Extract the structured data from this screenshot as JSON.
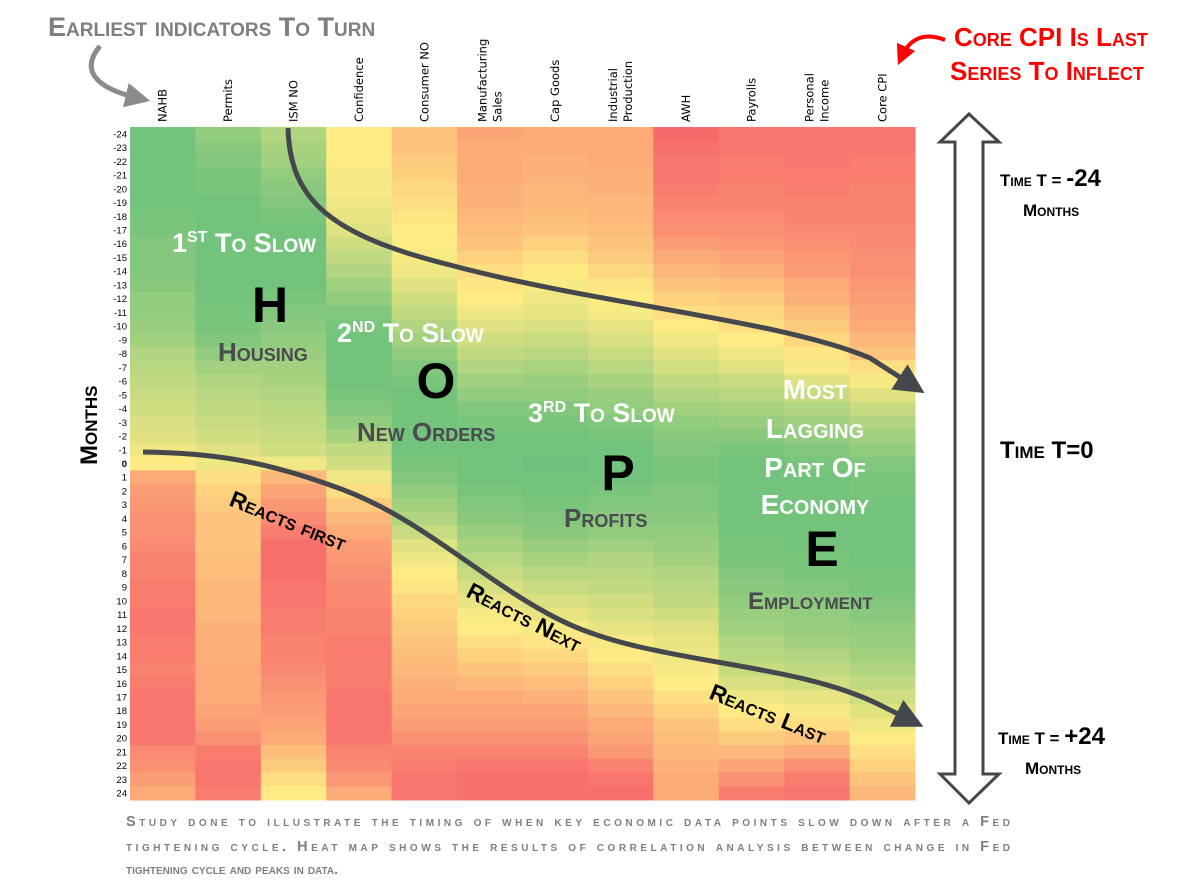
{
  "chart_data": {
    "type": "heatmap",
    "title": "Earliest indicators To Turn",
    "ylabel": "Months",
    "color_scale": {
      "low": "#f8696b",
      "mid": "#ffeb84",
      "high": "#63be7b"
    },
    "value_range": [
      -1,
      1
    ],
    "columns": [
      {
        "label": [
          "NAHB"
        ],
        "values": [
          0.9,
          0.9,
          0.9,
          0.9,
          0.9,
          0.9,
          0.85,
          0.85,
          0.8,
          0.8,
          0.8,
          0.75,
          0.7,
          0.7,
          0.65,
          0.6,
          0.5,
          0.45,
          0.4,
          0.35,
          0.3,
          0.25,
          0.2,
          0.1,
          0,
          -0.5,
          -0.6,
          -0.65,
          -0.7,
          -0.7,
          -0.75,
          -0.8,
          -0.8,
          -0.85,
          -0.85,
          -0.9,
          -0.9,
          -0.85,
          -0.85,
          -0.8,
          -0.85,
          -0.9,
          -0.9,
          -0.9,
          -0.9,
          -0.75,
          -0.7,
          -0.6,
          -0.5
        ]
      },
      {
        "label": [
          "Permits"
        ],
        "values": [
          0.7,
          0.75,
          0.8,
          0.85,
          0.85,
          0.9,
          0.9,
          0.9,
          0.9,
          0.9,
          0.9,
          0.9,
          0.9,
          0.85,
          0.85,
          0.8,
          0.7,
          0.6,
          0.5,
          0.45,
          0.4,
          0.35,
          0.3,
          0.2,
          0.1,
          -0.1,
          -0.2,
          -0.25,
          -0.3,
          -0.3,
          -0.3,
          -0.35,
          -0.35,
          -0.4,
          -0.4,
          -0.4,
          -0.45,
          -0.45,
          -0.45,
          -0.5,
          -0.5,
          -0.5,
          -0.55,
          -0.6,
          -0.7,
          -0.85,
          -0.9,
          -0.9,
          -0.85
        ]
      },
      {
        "label": [
          "ISM NO"
        ],
        "values": [
          0.5,
          0.55,
          0.6,
          0.7,
          0.75,
          0.8,
          0.85,
          0.9,
          0.9,
          0.9,
          0.9,
          0.9,
          0.85,
          0.8,
          0.75,
          0.7,
          0.65,
          0.6,
          0.55,
          0.5,
          0.45,
          0.4,
          0.35,
          0.3,
          0.1,
          -0.4,
          -0.55,
          -0.65,
          -0.75,
          -0.85,
          -0.95,
          -0.95,
          -0.95,
          -0.9,
          -0.9,
          -0.85,
          -0.85,
          -0.8,
          -0.8,
          -0.75,
          -0.7,
          -0.65,
          -0.6,
          -0.55,
          -0.5,
          -0.35,
          -0.25,
          -0.1,
          0
        ]
      },
      {
        "label": [
          "Confidence"
        ],
        "values": [
          0,
          0,
          0,
          0.05,
          0.05,
          0.1,
          0.15,
          0.2,
          0.3,
          0.4,
          0.5,
          0.6,
          0.7,
          0.8,
          0.85,
          0.9,
          0.9,
          0.9,
          0.9,
          0.85,
          0.8,
          0.7,
          0.55,
          0.4,
          0.3,
          0.1,
          -0.1,
          -0.25,
          -0.4,
          -0.5,
          -0.6,
          -0.65,
          -0.7,
          -0.75,
          -0.75,
          -0.8,
          -0.8,
          -0.85,
          -0.85,
          -0.85,
          -0.85,
          -0.9,
          -0.9,
          -0.9,
          -0.9,
          -0.8,
          -0.75,
          -0.65,
          -0.5
        ]
      },
      {
        "label": [
          "Consumer NO"
        ],
        "values": [
          -0.3,
          -0.3,
          -0.25,
          -0.2,
          -0.15,
          -0.1,
          -0.05,
          0,
          0,
          0.05,
          0.1,
          0.2,
          0.3,
          0.4,
          0.5,
          0.6,
          0.7,
          0.8,
          0.85,
          0.9,
          0.9,
          0.9,
          0.9,
          0.9,
          0.85,
          0.8,
          0.7,
          0.6,
          0.5,
          0.35,
          0.2,
          0.1,
          0,
          -0.05,
          -0.15,
          -0.2,
          -0.25,
          -0.3,
          -0.35,
          -0.4,
          -0.45,
          -0.5,
          -0.55,
          -0.6,
          -0.7,
          -0.8,
          -0.85,
          -0.9,
          -0.9
        ]
      },
      {
        "label": [
          "Manufacturing",
          "Sales"
        ],
        "values": [
          -0.55,
          -0.5,
          -0.5,
          -0.5,
          -0.45,
          -0.45,
          -0.4,
          -0.35,
          -0.3,
          -0.2,
          -0.1,
          -0.05,
          0,
          0.1,
          0.2,
          0.3,
          0.4,
          0.5,
          0.6,
          0.7,
          0.8,
          0.85,
          0.9,
          0.9,
          0.9,
          0.9,
          0.85,
          0.8,
          0.75,
          0.65,
          0.55,
          0.45,
          0.35,
          0.25,
          0.15,
          0.05,
          0,
          -0.1,
          -0.2,
          -0.3,
          -0.4,
          -0.5,
          -0.55,
          -0.6,
          -0.7,
          -0.8,
          -0.9,
          -0.95,
          -0.95
        ]
      },
      {
        "label": [
          "Cap Goods"
        ],
        "values": [
          -0.5,
          -0.5,
          -0.45,
          -0.45,
          -0.4,
          -0.4,
          -0.35,
          -0.3,
          -0.2,
          -0.1,
          0,
          0.05,
          0.1,
          0.15,
          0.25,
          0.35,
          0.45,
          0.55,
          0.65,
          0.7,
          0.8,
          0.85,
          0.9,
          0.9,
          0.95,
          0.9,
          0.9,
          0.85,
          0.8,
          0.75,
          0.65,
          0.55,
          0.45,
          0.35,
          0.25,
          0.15,
          0.05,
          -0.05,
          -0.15,
          -0.25,
          -0.35,
          -0.45,
          -0.55,
          -0.6,
          -0.7,
          -0.8,
          -0.9,
          -0.95,
          -0.95
        ]
      },
      {
        "label": [
          "Industrial",
          "Production"
        ],
        "values": [
          -0.5,
          -0.5,
          -0.5,
          -0.45,
          -0.45,
          -0.4,
          -0.4,
          -0.35,
          -0.3,
          -0.25,
          -0.15,
          -0.05,
          0,
          0.05,
          0.15,
          0.25,
          0.35,
          0.45,
          0.55,
          0.65,
          0.7,
          0.8,
          0.85,
          0.9,
          0.9,
          0.9,
          0.85,
          0.8,
          0.75,
          0.7,
          0.6,
          0.5,
          0.45,
          0.4,
          0.3,
          0.25,
          0.15,
          0.05,
          0,
          -0.1,
          -0.2,
          -0.3,
          -0.4,
          -0.5,
          -0.55,
          -0.65,
          -0.8,
          -0.9,
          -0.95
        ]
      },
      {
        "label": [
          "AWH"
        ],
        "values": [
          -1,
          -0.95,
          -0.9,
          -0.9,
          -0.85,
          -0.8,
          -0.75,
          -0.7,
          -0.6,
          -0.5,
          -0.4,
          -0.3,
          -0.2,
          -0.1,
          0,
          0.1,
          0.2,
          0.3,
          0.4,
          0.5,
          0.6,
          0.7,
          0.75,
          0.8,
          0.85,
          0.85,
          0.8,
          0.8,
          0.75,
          0.7,
          0.65,
          0.6,
          0.5,
          0.45,
          0.4,
          0.3,
          0.2,
          0.15,
          0.1,
          0.05,
          0,
          -0.1,
          -0.2,
          -0.3,
          -0.35,
          -0.4,
          -0.45,
          -0.5,
          -0.5
        ]
      },
      {
        "label": [
          "Payrolls"
        ],
        "values": [
          -0.9,
          -0.9,
          -0.85,
          -0.85,
          -0.8,
          -0.8,
          -0.75,
          -0.7,
          -0.65,
          -0.55,
          -0.45,
          -0.35,
          -0.25,
          -0.15,
          -0.1,
          0,
          0.1,
          0.2,
          0.35,
          0.45,
          0.55,
          0.65,
          0.75,
          0.85,
          0.9,
          0.9,
          0.9,
          0.9,
          0.9,
          0.9,
          0.85,
          0.85,
          0.8,
          0.75,
          0.7,
          0.65,
          0.6,
          0.5,
          0.45,
          0.35,
          0.25,
          0.1,
          0,
          -0.1,
          -0.25,
          -0.4,
          -0.55,
          -0.7,
          -0.85
        ]
      },
      {
        "label": [
          "Personal",
          "Income"
        ],
        "values": [
          -0.9,
          -0.9,
          -0.9,
          -0.85,
          -0.85,
          -0.8,
          -0.8,
          -0.75,
          -0.7,
          -0.65,
          -0.6,
          -0.5,
          -0.45,
          -0.35,
          -0.25,
          -0.15,
          -0.05,
          0.05,
          0.2,
          0.35,
          0.5,
          0.6,
          0.7,
          0.8,
          0.85,
          0.9,
          0.9,
          0.9,
          0.9,
          0.9,
          0.9,
          0.85,
          0.85,
          0.8,
          0.75,
          0.7,
          0.65,
          0.6,
          0.5,
          0.4,
          0.3,
          0.15,
          0.05,
          -0.1,
          -0.3,
          -0.5,
          -0.7,
          -0.85,
          -0.9
        ]
      },
      {
        "label": [
          "Core CPI"
        ],
        "values": [
          -0.9,
          -0.9,
          -0.85,
          -0.85,
          -0.8,
          -0.8,
          -0.8,
          -0.75,
          -0.75,
          -0.7,
          -0.7,
          -0.65,
          -0.6,
          -0.55,
          -0.5,
          -0.4,
          -0.3,
          -0.1,
          0.05,
          0.2,
          0.35,
          0.5,
          0.6,
          0.7,
          0.8,
          0.85,
          0.85,
          0.9,
          0.9,
          0.9,
          0.9,
          0.9,
          0.85,
          0.85,
          0.8,
          0.75,
          0.7,
          0.65,
          0.6,
          0.5,
          0.4,
          0.3,
          0.2,
          0.1,
          0,
          -0.1,
          -0.2,
          -0.3,
          -0.4
        ]
      }
    ],
    "rows": [
      -24,
      -23,
      -22,
      -21,
      -20,
      -19,
      -18,
      -17,
      -16,
      -15,
      -14,
      -13,
      -12,
      -11,
      -10,
      -9,
      -8,
      -7,
      -6,
      -5,
      -4,
      -3,
      -2,
      -1,
      0,
      1,
      2,
      3,
      4,
      5,
      6,
      7,
      8,
      9,
      10,
      11,
      12,
      13,
      14,
      15,
      16,
      17,
      18,
      19,
      20,
      21,
      22,
      23,
      24
    ]
  },
  "annotations": {
    "top_left": "Earliest indicators To Turn",
    "top_right": [
      "Core CPI Is Last",
      "Series To Inflect"
    ],
    "time_start": [
      "Time T = ",
      "-24",
      "Months"
    ],
    "time_zero": "Time T=0",
    "time_end": [
      "Time T = ",
      "+24",
      "Months"
    ],
    "first": {
      "num": "1",
      "sup": "ST",
      "rest": " To Slow",
      "letter": "H",
      "word": "Housing"
    },
    "second": {
      "num": "2",
      "sup": "ND",
      "rest": " To Slow",
      "letter": "O",
      "word": "New Orders"
    },
    "third": {
      "num": "3",
      "sup": "RD",
      "rest": " To Slow",
      "letter": "P",
      "word": "Profits"
    },
    "last": {
      "lines": [
        "Most",
        "Lagging",
        "Part Of",
        "Economy"
      ],
      "letter": "E",
      "word": "Employment"
    },
    "reacts_first": "Reacts first",
    "reacts_next": "Reacts Next",
    "reacts_last": "Reacts Last",
    "footnote": [
      "Study done to illustrate the timing of when key economic data points slow down after a Fed",
      "tightening cycle. Heat map shows the results of correlation analysis between change in Fed",
      "tightening cycle and peaks in data."
    ]
  },
  "colors": {
    "gray_text": "#7f7f7f",
    "red_text": "#ff0000",
    "arrow": "#44484d",
    "dark_label": "#4a4a4f"
  }
}
